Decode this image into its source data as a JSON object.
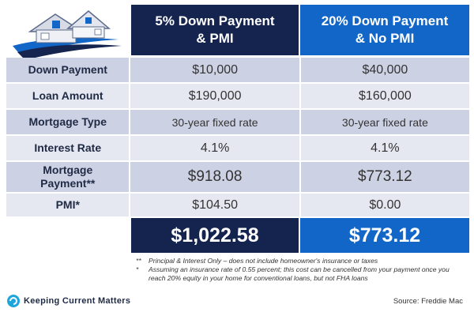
{
  "header": {
    "col1": "5% Down Payment\n& PMI",
    "col2": "20% Down Payment\n& No PMI"
  },
  "rows": [
    {
      "label": "Down Payment",
      "v1": "$10,000",
      "v2": "$40,000"
    },
    {
      "label": "Loan Amount",
      "v1": "$190,000",
      "v2": "$160,000"
    },
    {
      "label": "Mortgage Type",
      "v1": "30-year fixed rate",
      "v2": "30-year fixed rate"
    },
    {
      "label": "Interest Rate",
      "v1": "4.1%",
      "v2": "4.1%"
    },
    {
      "label": "Mortgage\nPayment**",
      "v1": "$918.08",
      "v2": "$773.12"
    },
    {
      "label": "PMI*",
      "v1": "$104.50",
      "v2": "$0.00"
    }
  ],
  "totals": {
    "v1": "$1,022.58",
    "v2": "$773.12"
  },
  "footnotes": [
    {
      "mark": "**",
      "text": "Principal & Interest Only – does not include homeowner's insurance or taxes"
    },
    {
      "mark": "*",
      "text": "Assuming an insurance rate of 0.55 percent; this cost can be cancelled from your payment once you reach 20% equity in your home for conventional loans, but not FHA loans"
    }
  ],
  "brand": "Keeping Current Matters",
  "source": "Source: Freddie Mac",
  "colors": {
    "navy": "#14244e",
    "blue": "#1166c8",
    "row_dark": "#cdd1e4",
    "row_light": "#e6e8f1"
  }
}
